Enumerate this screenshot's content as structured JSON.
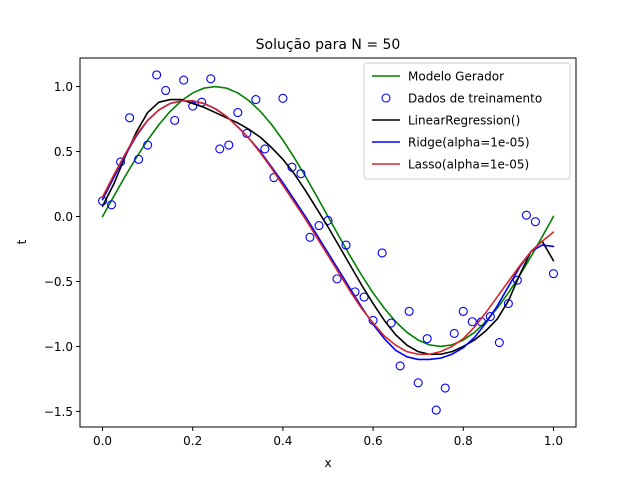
{
  "chart_data": {
    "type": "line",
    "title": "Solução para N = 50",
    "xlabel": "x",
    "ylabel": "t",
    "xlim": [
      -0.05,
      1.05
    ],
    "ylim": [
      -1.62,
      1.22
    ],
    "xticks": [
      0.0,
      0.2,
      0.4,
      0.6,
      0.8,
      1.0
    ],
    "xtick_labels": [
      "0.0",
      "0.2",
      "0.4",
      "0.6",
      "0.8",
      "1.0"
    ],
    "yticks": [
      -1.5,
      -1.0,
      -0.5,
      0.0,
      0.5,
      1.0
    ],
    "ytick_labels": [
      "−1.5",
      "−1.0",
      "−0.5",
      "0.0",
      "0.5",
      "1.0"
    ],
    "grid": false,
    "legend_position": "top-right",
    "colors": {
      "generator": "#008000",
      "points": "#0000ff",
      "linear": "#000000",
      "ridge": "#0000ff",
      "lasso": "#d62728"
    },
    "series": [
      {
        "name": "Modelo Gerador",
        "kind": "line",
        "color": "#008000",
        "x": [
          0.0,
          0.025,
          0.05,
          0.075,
          0.1,
          0.125,
          0.15,
          0.175,
          0.2,
          0.225,
          0.25,
          0.275,
          0.3,
          0.325,
          0.35,
          0.375,
          0.4,
          0.425,
          0.45,
          0.475,
          0.5,
          0.525,
          0.55,
          0.575,
          0.6,
          0.625,
          0.65,
          0.675,
          0.7,
          0.725,
          0.75,
          0.775,
          0.8,
          0.825,
          0.85,
          0.875,
          0.9,
          0.925,
          0.95,
          0.975,
          1.0
        ],
        "y": [
          0.0,
          0.156,
          0.309,
          0.454,
          0.588,
          0.707,
          0.809,
          0.891,
          0.951,
          0.988,
          1.0,
          0.988,
          0.951,
          0.891,
          0.809,
          0.707,
          0.588,
          0.454,
          0.309,
          0.156,
          0.0,
          -0.156,
          -0.309,
          -0.454,
          -0.588,
          -0.707,
          -0.809,
          -0.891,
          -0.951,
          -0.988,
          -1.0,
          -0.988,
          -0.951,
          -0.891,
          -0.809,
          -0.707,
          -0.588,
          -0.454,
          -0.309,
          -0.156,
          0.0
        ]
      },
      {
        "name": "Dados de treinamento",
        "kind": "scatter",
        "color": "#0000ff",
        "x": [
          0.0,
          0.02,
          0.04,
          0.06,
          0.08,
          0.1,
          0.12,
          0.14,
          0.16,
          0.18,
          0.2,
          0.22,
          0.24,
          0.26,
          0.28,
          0.3,
          0.32,
          0.34,
          0.36,
          0.38,
          0.4,
          0.42,
          0.44,
          0.46,
          0.48,
          0.5,
          0.52,
          0.54,
          0.56,
          0.58,
          0.6,
          0.62,
          0.64,
          0.66,
          0.68,
          0.7,
          0.72,
          0.74,
          0.76,
          0.78,
          0.8,
          0.82,
          0.84,
          0.86,
          0.88,
          0.9,
          0.92,
          0.94,
          0.96,
          1.0
        ],
        "y": [
          0.12,
          0.09,
          0.42,
          0.76,
          0.44,
          0.55,
          1.09,
          0.97,
          0.74,
          1.05,
          0.85,
          0.88,
          1.06,
          0.52,
          0.55,
          0.8,
          0.64,
          0.9,
          0.52,
          0.3,
          0.91,
          0.38,
          0.33,
          -0.16,
          -0.07,
          -0.03,
          -0.48,
          -0.22,
          -0.58,
          -0.62,
          -0.8,
          -0.28,
          -0.82,
          -1.15,
          -0.73,
          -1.28,
          -0.94,
          -1.49,
          -1.32,
          -0.9,
          -0.73,
          -0.81,
          -0.81,
          -0.77,
          -0.97,
          -0.67,
          -0.49,
          0.01,
          -0.04,
          -0.44
        ]
      },
      {
        "name": "LinearRegression()",
        "kind": "line",
        "color": "#000000",
        "x": [
          0.0,
          0.025,
          0.05,
          0.075,
          0.1,
          0.125,
          0.15,
          0.175,
          0.2,
          0.225,
          0.25,
          0.275,
          0.3,
          0.325,
          0.35,
          0.375,
          0.4,
          0.425,
          0.45,
          0.475,
          0.5,
          0.525,
          0.55,
          0.575,
          0.6,
          0.625,
          0.65,
          0.675,
          0.7,
          0.725,
          0.75,
          0.775,
          0.8,
          0.825,
          0.85,
          0.875,
          0.9,
          0.925,
          0.95,
          0.975,
          1.0
        ],
        "y": [
          0.08,
          0.25,
          0.46,
          0.65,
          0.8,
          0.88,
          0.9,
          0.9,
          0.87,
          0.84,
          0.8,
          0.76,
          0.72,
          0.67,
          0.61,
          0.53,
          0.44,
          0.33,
          0.2,
          0.06,
          -0.08,
          -0.23,
          -0.38,
          -0.53,
          -0.67,
          -0.8,
          -0.91,
          -0.99,
          -1.04,
          -1.06,
          -1.06,
          -1.04,
          -1.0,
          -0.95,
          -0.88,
          -0.79,
          -0.65,
          -0.45,
          -0.27,
          -0.19,
          -0.34
        ]
      },
      {
        "name": "Ridge(alpha=1e-05)",
        "kind": "line",
        "color": "#0000ff",
        "x": [
          0.0,
          0.025,
          0.05,
          0.075,
          0.1,
          0.125,
          0.15,
          0.175,
          0.2,
          0.225,
          0.25,
          0.275,
          0.3,
          0.325,
          0.35,
          0.375,
          0.4,
          0.425,
          0.45,
          0.475,
          0.5,
          0.525,
          0.55,
          0.575,
          0.6,
          0.625,
          0.65,
          0.675,
          0.7,
          0.725,
          0.75,
          0.775,
          0.8,
          0.825,
          0.85,
          0.875,
          0.9,
          0.925,
          0.95,
          0.975,
          1.0
        ],
        "y": [
          0.13,
          0.3,
          0.47,
          0.62,
          0.74,
          0.82,
          0.87,
          0.89,
          0.89,
          0.87,
          0.83,
          0.77,
          0.69,
          0.6,
          0.5,
          0.38,
          0.26,
          0.13,
          0.0,
          -0.14,
          -0.28,
          -0.42,
          -0.56,
          -0.7,
          -0.83,
          -0.94,
          -1.03,
          -1.08,
          -1.1,
          -1.1,
          -1.09,
          -1.06,
          -1.01,
          -0.93,
          -0.82,
          -0.69,
          -0.54,
          -0.39,
          -0.27,
          -0.22,
          -0.23
        ]
      },
      {
        "name": "Lasso(alpha=1e-05)",
        "kind": "line",
        "color": "#d62728",
        "x": [
          0.0,
          0.025,
          0.05,
          0.075,
          0.1,
          0.125,
          0.15,
          0.175,
          0.2,
          0.225,
          0.25,
          0.275,
          0.3,
          0.325,
          0.35,
          0.375,
          0.4,
          0.425,
          0.45,
          0.475,
          0.5,
          0.525,
          0.55,
          0.575,
          0.6,
          0.625,
          0.65,
          0.675,
          0.7,
          0.725,
          0.75,
          0.775,
          0.8,
          0.825,
          0.85,
          0.875,
          0.9,
          0.925,
          0.95,
          0.975,
          1.0
        ],
        "y": [
          0.15,
          0.32,
          0.48,
          0.63,
          0.74,
          0.82,
          0.87,
          0.89,
          0.89,
          0.87,
          0.83,
          0.77,
          0.69,
          0.6,
          0.49,
          0.37,
          0.24,
          0.11,
          -0.02,
          -0.16,
          -0.3,
          -0.44,
          -0.58,
          -0.71,
          -0.82,
          -0.92,
          -0.99,
          -1.04,
          -1.06,
          -1.06,
          -1.04,
          -1.0,
          -0.94,
          -0.85,
          -0.74,
          -0.62,
          -0.5,
          -0.38,
          -0.27,
          -0.19,
          -0.12
        ]
      }
    ]
  }
}
